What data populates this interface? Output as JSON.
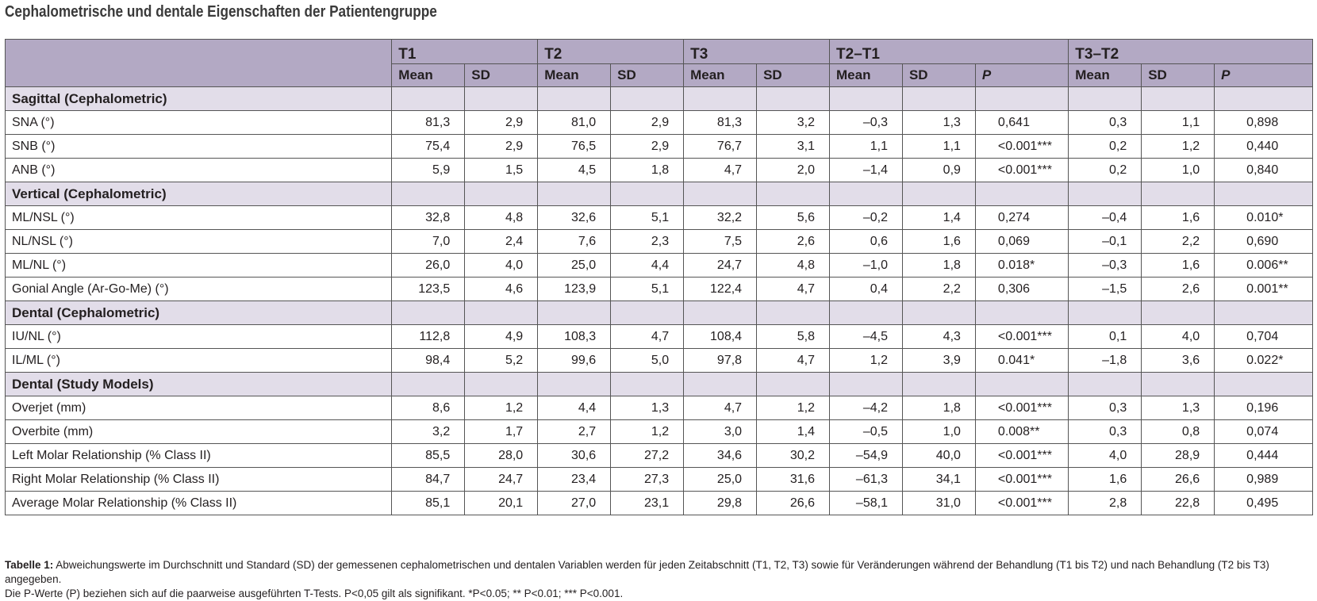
{
  "title": "Cephalometrische und dentale Eigenschaften der Patientengruppe",
  "header": {
    "groups": [
      "T1",
      "T2",
      "T3",
      "T2–T1",
      "T3–T2"
    ],
    "sub": [
      "Mean",
      "SD",
      "Mean",
      "SD",
      "Mean",
      "SD",
      "Mean",
      "SD",
      "P",
      "Mean",
      "SD",
      "P"
    ]
  },
  "sections": [
    {
      "title": "Sagittal (Cephalometric)",
      "rows": [
        {
          "label": "SNA (°)",
          "cells": [
            "81,3",
            "2,9",
            "81,0",
            "2,9",
            "81,3",
            "3,2",
            "–0,3",
            "1,3",
            "0,641",
            "0,3",
            "1,1",
            "0,898"
          ]
        },
        {
          "label": "SNB (°)",
          "cells": [
            "75,4",
            "2,9",
            "76,5",
            "2,9",
            "76,7",
            "3,1",
            "1,1",
            "1,1",
            "<0.001***",
            "0,2",
            "1,2",
            "0,440"
          ]
        },
        {
          "label": "ANB (°)",
          "cells": [
            "5,9",
            "1,5",
            "4,5",
            "1,8",
            "4,7",
            "2,0",
            "–1,4",
            "0,9",
            "<0.001***",
            "0,2",
            "1,0",
            "0,840"
          ]
        }
      ]
    },
    {
      "title": "Vertical (Cephalometric)",
      "rows": [
        {
          "label": "ML/NSL (°)",
          "cells": [
            "32,8",
            "4,8",
            "32,6",
            "5,1",
            "32,2",
            "5,6",
            "–0,2",
            "1,4",
            "0,274",
            "–0,4",
            "1,6",
            "0.010*"
          ]
        },
        {
          "label": "NL/NSL (°)",
          "cells": [
            "7,0",
            "2,4",
            "7,6",
            "2,3",
            "7,5",
            "2,6",
            "0,6",
            "1,6",
            "0,069",
            "–0,1",
            "2,2",
            "0,690"
          ]
        },
        {
          "label": "ML/NL (°)",
          "cells": [
            "26,0",
            "4,0",
            "25,0",
            "4,4",
            "24,7",
            "4,8",
            "–1,0",
            "1,8",
            "0.018*",
            "–0,3",
            "1,6",
            "0.006**"
          ]
        },
        {
          "label": "Gonial Angle (Ar-Go-Me) (°)",
          "cells": [
            "123,5",
            "4,6",
            "123,9",
            "5,1",
            "122,4",
            "4,7",
            "0,4",
            "2,2",
            "0,306",
            "–1,5",
            "2,6",
            "0.001**"
          ]
        }
      ]
    },
    {
      "title": "Dental (Cephalometric)",
      "rows": [
        {
          "label": "IU/NL (°)",
          "cells": [
            "112,8",
            "4,9",
            "108,3",
            "4,7",
            "108,4",
            "5,8",
            "–4,5",
            "4,3",
            "<0.001***",
            "0,1",
            "4,0",
            "0,704"
          ]
        },
        {
          "label": "IL/ML (°)",
          "cells": [
            "98,4",
            "5,2",
            "99,6",
            "5,0",
            "97,8",
            "4,7",
            "1,2",
            "3,9",
            "0.041*",
            "–1,8",
            "3,6",
            "0.022*"
          ]
        }
      ]
    },
    {
      "title": "Dental (Study Models)",
      "rows": [
        {
          "label": "Overjet (mm)",
          "cells": [
            "8,6",
            "1,2",
            "4,4",
            "1,3",
            "4,7",
            "1,2",
            "–4,2",
            "1,8",
            "<0.001***",
            "0,3",
            "1,3",
            "0,196"
          ]
        },
        {
          "label": "Overbite (mm)",
          "cells": [
            "3,2",
            "1,7",
            "2,7",
            "1,2",
            "3,0",
            "1,4",
            "–0,5",
            "1,0",
            "0.008**",
            "0,3",
            "0,8",
            "0,074"
          ]
        },
        {
          "label": "Left Molar Relationship (% Class II)",
          "cells": [
            "85,5",
            "28,0",
            "30,6",
            "27,2",
            "34,6",
            "30,2",
            "–54,9",
            "40,0",
            "<0.001***",
            "4,0",
            "28,9",
            "0,444"
          ]
        },
        {
          "label": "Right Molar Relationship (% Class II)",
          "cells": [
            "84,7",
            "24,7",
            "23,4",
            "27,3",
            "25,0",
            "31,6",
            "–61,3",
            "34,1",
            "<0.001***",
            "1,6",
            "26,6",
            "0,989"
          ]
        },
        {
          "label": "Average Molar Relationship (% Class II)",
          "cells": [
            "85,1",
            "20,1",
            "27,0",
            "23,1",
            "29,8",
            "26,6",
            "–58,1",
            "31,0",
            "<0.001***",
            "2,8",
            "22,8",
            "0,495"
          ]
        }
      ]
    }
  ],
  "caption": {
    "label": "Tabelle 1:",
    "line1": "Abweichungswerte im Durchschnitt und Standard (SD) der gemessenen cephalometrischen und dentalen Variablen werden für jeden Zeitabschnitt (T1, T2, T3) sowie für Veränderungen während der Behandlung (T1 bis T2) und nach Behandlung (T2 bis T3) angegeben.",
    "line2": "Die P-Werte (P) beziehen sich auf die paarweise ausgeführten T-Tests. P<0,05 gilt als signifikant. *P<0.05; ** P<0.01; *** P<0.001."
  }
}
